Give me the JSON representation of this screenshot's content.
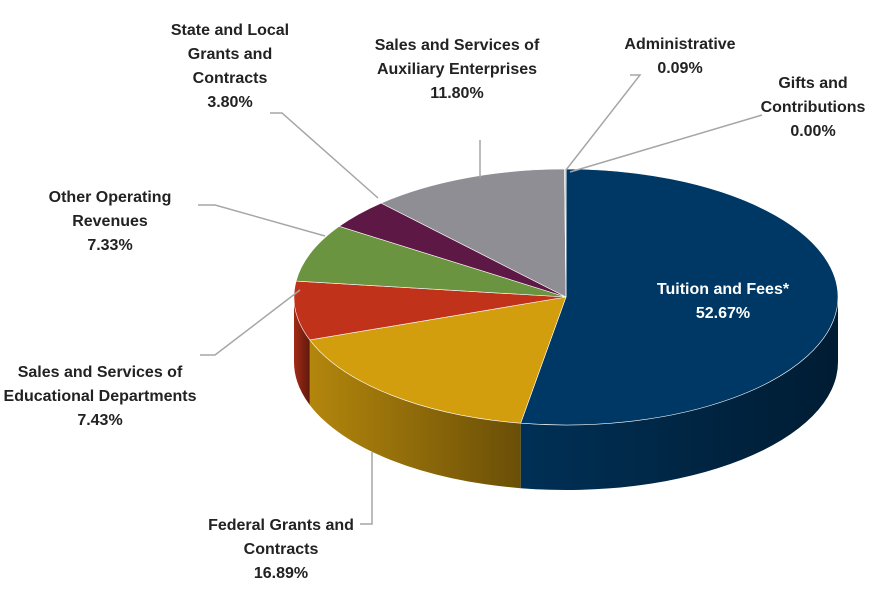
{
  "chart_data": {
    "type": "pie",
    "categories": [
      "Tuition and Fees*",
      "Federal Grants and Contracts",
      "Sales and Services of Educational Departments",
      "Other Operating Revenues",
      "State and Local Grants and Contracts",
      "Sales and Services of Auxiliary Enterprises",
      "Administrative",
      "Gifts and Contributions"
    ],
    "values": [
      52.67,
      16.89,
      7.43,
      7.33,
      3.8,
      11.8,
      0.09,
      0.0
    ],
    "value_labels": [
      "52.67%",
      "16.89%",
      "7.43%",
      "7.33%",
      "3.80%",
      "11.80%",
      "0.09%",
      "0.00%"
    ],
    "colors": [
      "#003865",
      "#d39e0e",
      "#c0321a",
      "#6a9440",
      "#5e1845",
      "#8e8e94",
      "#b0b0b0",
      "#c8c8c8"
    ]
  }
}
